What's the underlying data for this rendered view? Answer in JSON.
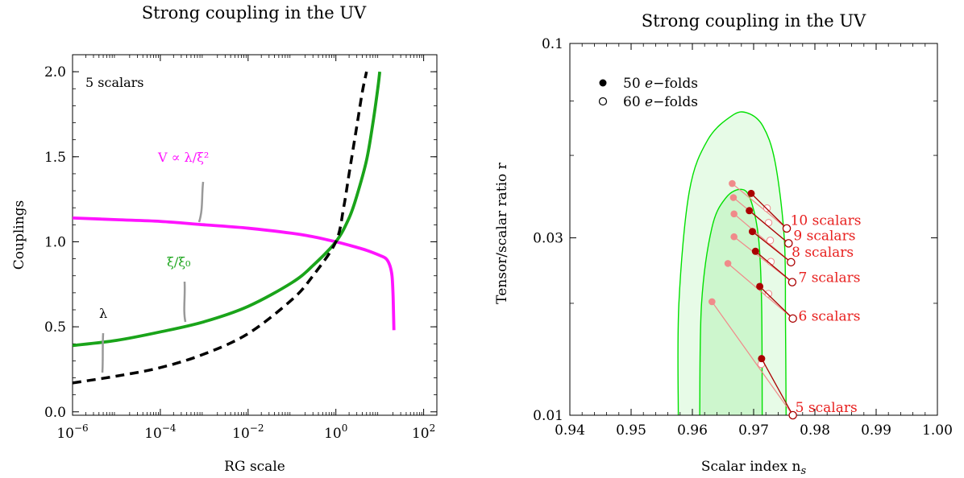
{
  "chart_data": [
    {
      "type": "line",
      "title": "Strong coupling in the UV",
      "xlabel": "RG scale",
      "ylabel": "Couplings",
      "xscale": "log",
      "xlim": [
        1e-06,
        200
      ],
      "ylim": [
        -0.02,
        2.1
      ],
      "x_ticks": [
        1e-06,
        0.0001,
        0.01,
        1,
        100
      ],
      "x_tick_labels": [
        {
          "base": "10",
          "exp": "−6"
        },
        {
          "base": "10",
          "exp": "−4"
        },
        {
          "base": "10",
          "exp": "−2"
        },
        {
          "base": "10",
          "exp": "0"
        },
        {
          "base": "10",
          "exp": "2"
        }
      ],
      "y_ticks": [
        0.0,
        0.5,
        1.0,
        1.5,
        2.0
      ],
      "y_tick_labels": [
        "0.0",
        "0.5",
        "1.0",
        "1.5",
        "2.0"
      ],
      "note": "5 scalars",
      "series": [
        {
          "name": "V ∝ λ/ξ²",
          "color": "#ff14ff",
          "style": "solid",
          "x": [
            1e-06,
            1e-05,
            0.0001,
            0.001,
            0.01,
            0.1,
            0.3,
            1,
            2,
            5,
            10,
            14,
            17,
            19,
            20,
            20.5,
            21
          ],
          "y": [
            1.14,
            1.13,
            1.12,
            1.1,
            1.08,
            1.05,
            1.03,
            1.0,
            0.98,
            0.95,
            0.92,
            0.9,
            0.86,
            0.8,
            0.7,
            0.6,
            0.48
          ]
        },
        {
          "name": "ξ/ξ₀",
          "color": "#1aa41a",
          "style": "solid",
          "x": [
            1e-06,
            1e-05,
            0.0001,
            0.001,
            0.01,
            0.1,
            0.3,
            1,
            2,
            3,
            5,
            7,
            9,
            10
          ],
          "y": [
            0.39,
            0.42,
            0.47,
            0.53,
            0.62,
            0.76,
            0.86,
            1.0,
            1.14,
            1.27,
            1.48,
            1.7,
            1.9,
            2.0
          ]
        },
        {
          "name": "λ",
          "color": "#000000",
          "style": "dashed",
          "x": [
            1e-06,
            1e-05,
            0.0001,
            0.001,
            0.01,
            0.1,
            0.3,
            1,
            1.5,
            2,
            3,
            4,
            5
          ],
          "y": [
            0.17,
            0.21,
            0.26,
            0.34,
            0.46,
            0.66,
            0.8,
            1.0,
            1.2,
            1.4,
            1.68,
            1.88,
            2.0
          ]
        }
      ],
      "labels": [
        {
          "text": "V ∝ λ/ξ²",
          "color": "#ff14ff"
        },
        {
          "text": "ξ/ξ₀",
          "color": "#1aa41a"
        },
        {
          "text": "λ",
          "color": "#000000"
        }
      ]
    },
    {
      "type": "scatter",
      "title": "Strong coupling in the UV",
      "xlabel": "Scalar index n",
      "xlabel_sub": "s",
      "ylabel": "Tensor/scalar ratio r",
      "xlim": [
        0.94,
        1.0
      ],
      "ylim": [
        0.01,
        0.1
      ],
      "yscale": "log",
      "x_ticks": [
        0.94,
        0.95,
        0.96,
        0.97,
        0.98,
        0.99,
        1.0
      ],
      "x_tick_labels": [
        "0.94",
        "0.95",
        "0.96",
        "0.97",
        "0.98",
        "0.99",
        "1.00"
      ],
      "y_ticks": [
        0.01,
        0.03,
        0.1
      ],
      "y_tick_labels": [
        "0.01",
        "0.03",
        "0.1"
      ],
      "legend": {
        "placement": "top-left",
        "entries": [
          {
            "marker": "filled",
            "prefix": "50 ",
            "em": "e",
            "suffix": "−folds"
          },
          {
            "marker": "open",
            "prefix": "60 ",
            "em": "e",
            "suffix": "−folds"
          }
        ]
      },
      "contours": [
        {
          "name": "outer",
          "color": "#00e000",
          "fill": "#e7fbe7",
          "points": [
            [
              0.9577,
              0.01
            ],
            [
              0.9578,
              0.02
            ],
            [
              0.9595,
              0.04
            ],
            [
              0.9625,
              0.055
            ],
            [
              0.9665,
              0.064
            ],
            [
              0.969,
              0.065
            ],
            [
              0.9715,
              0.06
            ],
            [
              0.9735,
              0.048
            ],
            [
              0.975,
              0.03
            ],
            [
              0.9752,
              0.018
            ],
            [
              0.9753,
              0.01
            ]
          ]
        },
        {
          "name": "inner",
          "color": "#00e000",
          "fill": "#cdf6cd",
          "points": [
            [
              0.9612,
              0.01
            ],
            [
              0.9615,
              0.02
            ],
            [
              0.9632,
              0.032
            ],
            [
              0.9655,
              0.0385
            ],
            [
              0.968,
              0.0405
            ],
            [
              0.9695,
              0.038
            ],
            [
              0.9708,
              0.03
            ],
            [
              0.9713,
              0.02
            ],
            [
              0.9714,
              0.01
            ]
          ]
        }
      ],
      "scalar_labels": [
        {
          "text": "10 scalars",
          "x": 0.976,
          "r": 0.0335
        },
        {
          "text": "9 scalars",
          "x": 0.9765,
          "r": 0.0305
        },
        {
          "text": "8 scalars",
          "x": 0.9762,
          "r": 0.0275
        },
        {
          "text": "7 scalars",
          "x": 0.9773,
          "r": 0.0235
        },
        {
          "text": "6 scalars",
          "x": 0.9773,
          "r": 0.0185
        },
        {
          "text": "5 scalars",
          "x": 0.9768,
          "r": 0.0105
        }
      ],
      "trajectories": [
        {
          "n": 10,
          "ns50": 0.9696,
          "r50": 0.0395,
          "ns60": 0.9754,
          "r60": 0.0318,
          "pink_ns": 0.9665,
          "pink_r": 0.042
        },
        {
          "n": 9,
          "ns50": 0.9693,
          "r50": 0.0355,
          "ns60": 0.9757,
          "r60": 0.029,
          "pink_ns": 0.9667,
          "pink_r": 0.0385
        },
        {
          "n": 8,
          "ns50": 0.9698,
          "r50": 0.0312,
          "ns60": 0.9761,
          "r60": 0.0258,
          "pink_ns": 0.9668,
          "pink_r": 0.0348
        },
        {
          "n": 7,
          "ns50": 0.9703,
          "r50": 0.0276,
          "ns60": 0.9763,
          "r60": 0.0228,
          "pink_ns": 0.9668,
          "pink_r": 0.0302
        },
        {
          "n": 6,
          "ns50": 0.971,
          "r50": 0.0222,
          "ns60": 0.9764,
          "r60": 0.0182,
          "pink_ns": 0.9658,
          "pink_r": 0.0256
        },
        {
          "n": 5,
          "ns50": 0.9713,
          "r50": 0.0142,
          "ns60": 0.9764,
          "r60": 0.01,
          "pink_ns": 0.9632,
          "pink_r": 0.0202
        }
      ],
      "colors": {
        "dark": "#aa0000",
        "light": "#f08a8a"
      }
    }
  ]
}
